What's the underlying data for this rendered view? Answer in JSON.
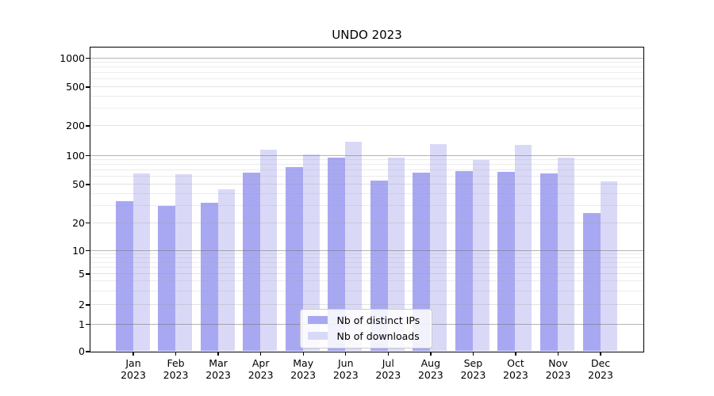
{
  "chart_data": {
    "type": "bar",
    "title": "UNDO 2023",
    "categories": [
      "Jan",
      "Feb",
      "Mar",
      "Apr",
      "May",
      "Jun",
      "Jul",
      "Aug",
      "Sep",
      "Oct",
      "Nov",
      "Dec"
    ],
    "year_label": "2023",
    "series": [
      {
        "name": "Nb of distinct IPs",
        "color": "#a8a8f2",
        "values": [
          33,
          30,
          32,
          66,
          75,
          94,
          54,
          66,
          69,
          67,
          65,
          25
        ]
      },
      {
        "name": "Nb of downloads",
        "color": "#d9d9f7",
        "values": [
          65,
          64,
          44,
          114,
          102,
          137,
          94,
          130,
          90,
          128,
          94,
          53
        ]
      }
    ],
    "y_ticks": [
      0,
      1,
      2,
      5,
      10,
      20,
      50,
      100,
      200,
      500,
      1000
    ],
    "y_major_ticks": [
      1,
      10,
      100,
      1000
    ],
    "y_minor_ticks": [
      3,
      4,
      6,
      7,
      8,
      9,
      30,
      40,
      60,
      70,
      80,
      90,
      300,
      400,
      600,
      700,
      800,
      900
    ],
    "ylim": [
      0,
      1000
    ],
    "xlabel": "",
    "ylabel": "",
    "scale": "log-like above 1 with linear 0-1 segment",
    "grid": "on",
    "legend_position": "bottom-center"
  }
}
